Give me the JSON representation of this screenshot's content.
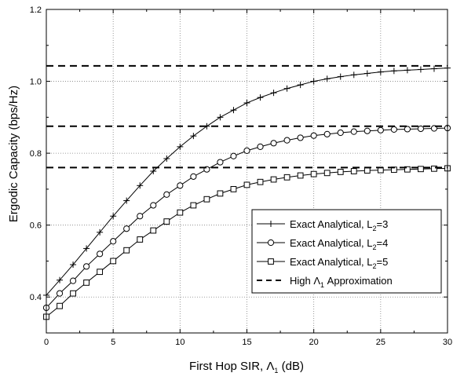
{
  "chart_data": {
    "type": "line",
    "xlabel": "First Hop SIR, Λ",
    "xlabel_sub": "1",
    "xlabel_unit": " (dB)",
    "ylabel": "Ergodic Capacity (bps/Hz)",
    "xlim": [
      0,
      30
    ],
    "ylim": [
      0.3,
      1.2
    ],
    "xticks": [
      0,
      5,
      10,
      15,
      20,
      25,
      30
    ],
    "yticks": [
      0.4,
      0.6,
      0.8,
      1.0,
      1.2
    ],
    "ytick_labels": [
      "0.4",
      "0.6",
      "0.8",
      "1.0",
      "1.2"
    ],
    "grid": true,
    "legend_position": "lower-right",
    "series": [
      {
        "name_main": "Exact Analytical, L",
        "name_sub": "2",
        "name_tail": "=3",
        "marker": "plus",
        "line": "solid",
        "x": [
          0,
          1,
          2,
          3,
          4,
          5,
          6,
          7,
          8,
          9,
          10,
          11,
          12,
          13,
          14,
          15,
          16,
          17,
          18,
          19,
          20,
          21,
          22,
          23,
          24,
          25,
          26,
          27,
          28,
          29,
          30
        ],
        "y": [
          0.405,
          0.447,
          0.49,
          0.535,
          0.58,
          0.625,
          0.668,
          0.71,
          0.75,
          0.785,
          0.818,
          0.848,
          0.875,
          0.9,
          0.92,
          0.94,
          0.955,
          0.968,
          0.98,
          0.99,
          1.0,
          1.007,
          1.013,
          1.018,
          1.022,
          1.026,
          1.029,
          1.031,
          1.033,
          1.035,
          1.037
        ]
      },
      {
        "name_main": "Exact Analytical, L",
        "name_sub": "2",
        "name_tail": "=4",
        "marker": "circle",
        "line": "solid",
        "x": [
          0,
          1,
          2,
          3,
          4,
          5,
          6,
          7,
          8,
          9,
          10,
          11,
          12,
          13,
          14,
          15,
          16,
          17,
          18,
          19,
          20,
          21,
          22,
          23,
          24,
          25,
          26,
          27,
          28,
          29,
          30
        ],
        "y": [
          0.37,
          0.41,
          0.445,
          0.485,
          0.52,
          0.555,
          0.59,
          0.625,
          0.655,
          0.685,
          0.71,
          0.735,
          0.755,
          0.775,
          0.792,
          0.807,
          0.818,
          0.828,
          0.836,
          0.843,
          0.849,
          0.853,
          0.857,
          0.86,
          0.862,
          0.864,
          0.866,
          0.867,
          0.868,
          0.869,
          0.87
        ]
      },
      {
        "name_main": "Exact Analytical, L",
        "name_sub": "2",
        "name_tail": "=5",
        "marker": "square",
        "line": "solid",
        "x": [
          0,
          1,
          2,
          3,
          4,
          5,
          6,
          7,
          8,
          9,
          10,
          11,
          12,
          13,
          14,
          15,
          16,
          17,
          18,
          19,
          20,
          21,
          22,
          23,
          24,
          25,
          26,
          27,
          28,
          29,
          30
        ],
        "y": [
          0.345,
          0.375,
          0.41,
          0.44,
          0.47,
          0.5,
          0.53,
          0.56,
          0.585,
          0.61,
          0.635,
          0.655,
          0.672,
          0.688,
          0.7,
          0.712,
          0.72,
          0.727,
          0.733,
          0.738,
          0.742,
          0.745,
          0.748,
          0.75,
          0.752,
          0.753,
          0.754,
          0.755,
          0.756,
          0.757,
          0.758
        ]
      },
      {
        "name_main": "High Λ",
        "name_sub": "1",
        "name_tail": " Approximation",
        "marker": "none",
        "line": "dashed",
        "x": [
          0,
          30
        ],
        "levels": [
          1.043,
          0.875,
          0.76
        ]
      }
    ]
  },
  "colors": {
    "line": "#000000",
    "grid": "#808080",
    "background": "#ffffff"
  }
}
